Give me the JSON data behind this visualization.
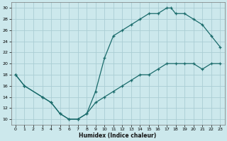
{
  "xlabel": "Humidex (Indice chaleur)",
  "bg_color": "#cce8ec",
  "grid_color": "#aacdd4",
  "line_color": "#1a6b6b",
  "xlim": [
    -0.5,
    23.5
  ],
  "ylim": [
    9,
    31
  ],
  "xticks": [
    0,
    1,
    2,
    3,
    4,
    5,
    6,
    7,
    8,
    9,
    10,
    11,
    12,
    13,
    14,
    15,
    16,
    17,
    18,
    19,
    20,
    21,
    22,
    23
  ],
  "yticks": [
    10,
    12,
    14,
    16,
    18,
    20,
    22,
    24,
    26,
    28,
    30
  ],
  "line1_x": [
    0,
    1,
    3,
    4,
    5,
    6,
    7,
    8,
    9,
    10,
    11,
    12,
    13,
    14,
    15,
    16,
    17,
    17.5,
    18,
    19,
    20,
    21,
    22,
    23
  ],
  "line1_y": [
    18,
    16,
    14,
    13,
    11,
    10,
    10,
    11,
    15,
    21,
    25,
    26,
    27,
    28,
    29,
    29,
    30,
    30,
    29,
    29,
    28,
    27,
    25,
    23
  ],
  "line2_x": [
    0,
    1,
    3,
    4,
    5,
    6,
    7,
    8,
    9,
    10,
    11,
    12,
    13,
    14,
    15,
    16,
    17,
    18,
    19,
    20,
    21,
    22,
    23
  ],
  "line2_y": [
    18,
    16,
    14,
    13,
    11,
    10,
    10,
    11,
    13,
    14,
    15,
    16,
    17,
    18,
    18,
    19,
    20,
    20,
    20,
    20,
    19,
    20,
    20
  ]
}
